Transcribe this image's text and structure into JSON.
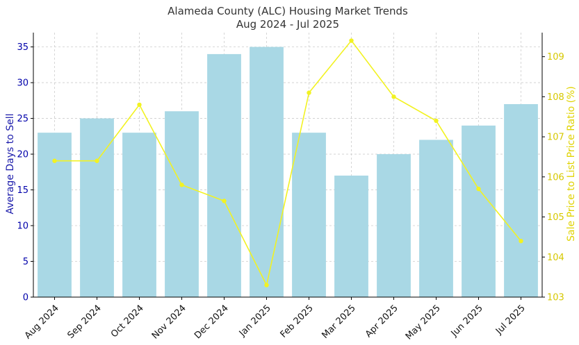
{
  "chart_data": {
    "type": "bar+line",
    "title": "Alameda County (ALC) Housing Market Trends",
    "subtitle": "Aug 2024 - Jul 2025",
    "categories": [
      "Aug 2024",
      "Sep 2024",
      "Oct 2024",
      "Nov 2024",
      "Dec 2024",
      "Jan 2025",
      "Feb 2025",
      "Mar 2025",
      "Apr 2025",
      "May 2025",
      "Jun 2025",
      "Jul 2025"
    ],
    "series": [
      {
        "name": "Average Days to Sell",
        "type": "bar",
        "axis": "left",
        "color": "#a9d8e5",
        "values": [
          23,
          25,
          23,
          26,
          34,
          35,
          23,
          17,
          20,
          22,
          24,
          27
        ]
      },
      {
        "name": "Sale Price to List Price Ratio (%)",
        "type": "line",
        "axis": "right",
        "color": "#f2f222",
        "values": [
          106.4,
          106.4,
          107.8,
          105.8,
          105.4,
          103.3,
          108.1,
          109.4,
          108.0,
          107.4,
          105.7,
          104.4
        ]
      }
    ],
    "ylabel": "Average Days to Sell",
    "y2label": "Sale Price to List Price Ratio (%)",
    "ylim": [
      0,
      37
    ],
    "y2lim": [
      103,
      109.6
    ],
    "yticks": [
      0,
      5,
      10,
      15,
      20,
      25,
      30,
      35
    ],
    "y2ticks": [
      103,
      104,
      105,
      106,
      107,
      108,
      109
    ],
    "grid": true,
    "left_axis_color": "#0000aa",
    "right_axis_color": "#d6c800"
  }
}
